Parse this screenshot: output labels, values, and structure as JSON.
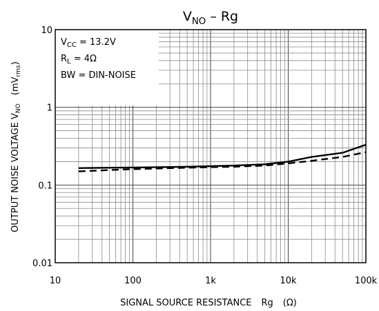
{
  "chart_data": {
    "type": "line",
    "title": {
      "main": "V",
      "sub": "NO",
      "rest": " – Rg"
    },
    "xaxis": {
      "label": {
        "main": "SIGNAL SOURCE RESISTANCE",
        "var": "Rg",
        "unit": "(Ω)"
      },
      "scale": "log",
      "range": [
        10,
        100000
      ],
      "ticks": [
        10,
        100,
        1000,
        10000,
        100000
      ],
      "tick_labels": [
        "10",
        "100",
        "1k",
        "10k",
        "100k"
      ]
    },
    "yaxis": {
      "label": {
        "main": "OUTPUT NOISE VOLTAGE  V",
        "sub": "NO",
        "unit_pre": "(mV",
        "unit_sub": "rms",
        "unit_post": ")"
      },
      "scale": "log",
      "range": [
        0.01,
        10
      ],
      "ticks": [
        0.01,
        0.1,
        1,
        10
      ],
      "tick_labels": [
        "0.01",
        "0.1",
        "1",
        "10"
      ]
    },
    "conditions": [
      {
        "main": "V",
        "sub": "CC",
        "rest": " = 13.2V"
      },
      {
        "main": "R",
        "sub": "L",
        "rest": " = 4Ω"
      },
      {
        "main": "BW = DIN-NOISE",
        "sub": "",
        "rest": ""
      }
    ],
    "grid": true,
    "series": [
      {
        "style": "solid",
        "x": [
          20,
          50,
          100,
          200,
          500,
          1000,
          2000,
          5000,
          10000,
          20000,
          50000,
          100000
        ],
        "y": [
          0.165,
          0.167,
          0.168,
          0.17,
          0.172,
          0.175,
          0.178,
          0.185,
          0.2,
          0.23,
          0.26,
          0.33
        ]
      },
      {
        "style": "dashed",
        "x": [
          20,
          50,
          100,
          200,
          500,
          1000,
          2000,
          5000,
          10000,
          20000,
          50000,
          100000
        ],
        "y": [
          0.15,
          0.156,
          0.16,
          0.163,
          0.167,
          0.17,
          0.172,
          0.178,
          0.19,
          0.205,
          0.23,
          0.265
        ]
      }
    ]
  }
}
